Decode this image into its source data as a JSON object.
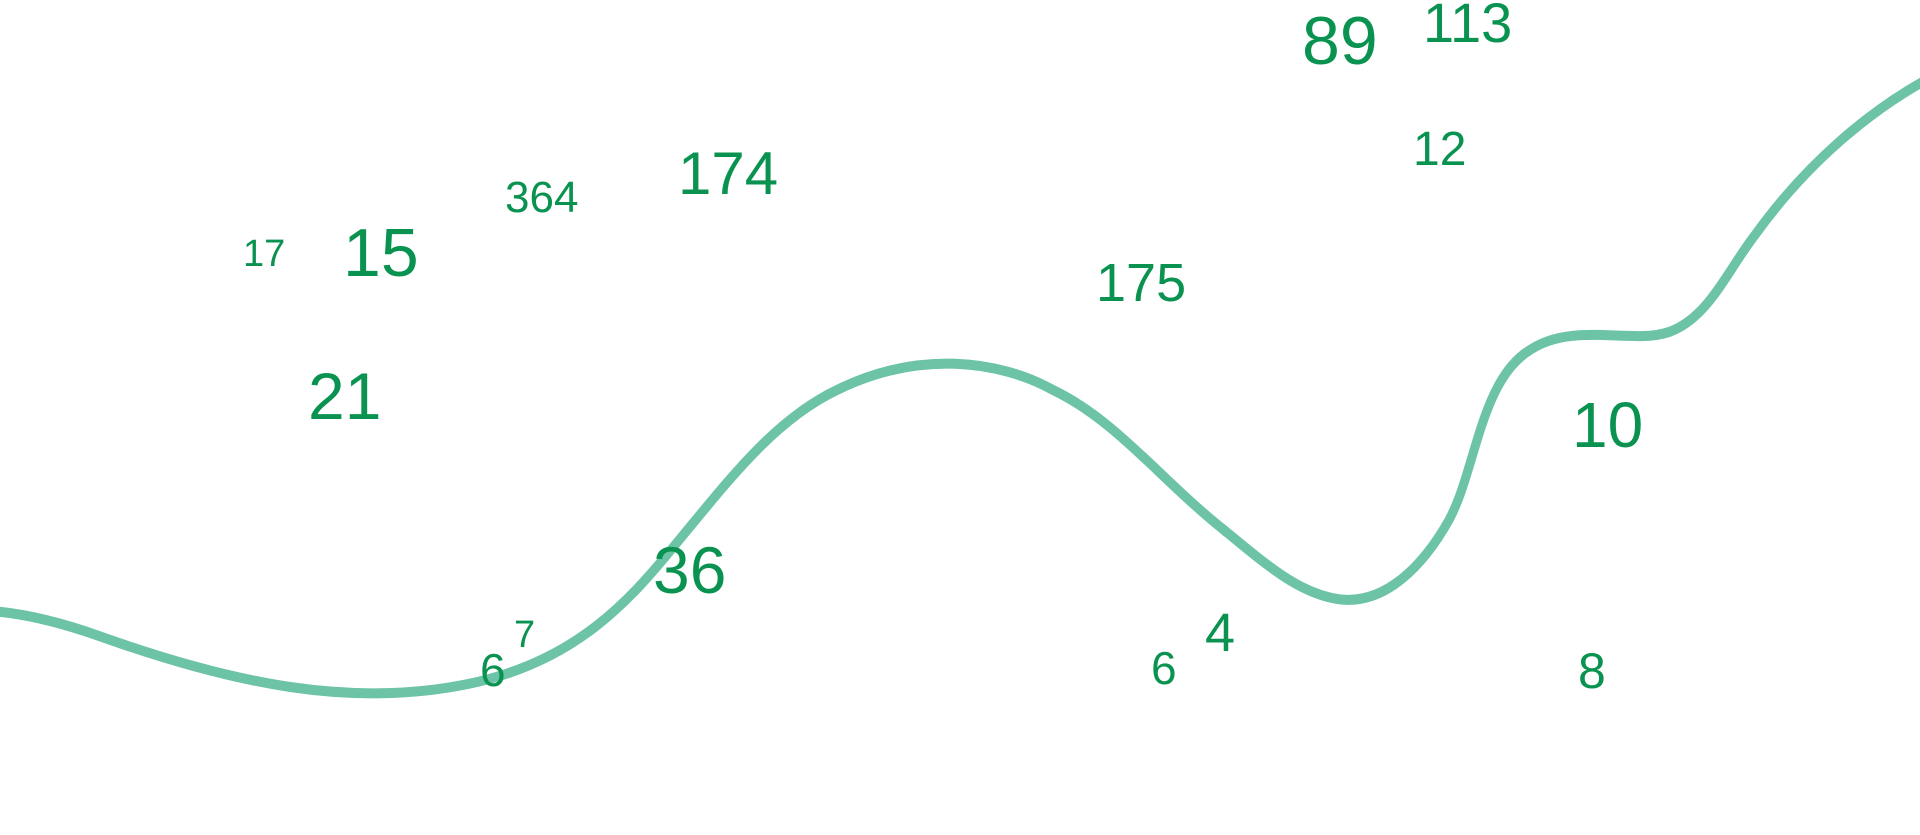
{
  "colors": {
    "number": "#0a9350",
    "curve": "#6cc3a6"
  },
  "numbers": [
    "89",
    "113",
    "364",
    "174",
    "12",
    "17",
    "15",
    "175",
    "21",
    "10",
    "36",
    "7",
    "6",
    "4",
    "6",
    "8"
  ]
}
